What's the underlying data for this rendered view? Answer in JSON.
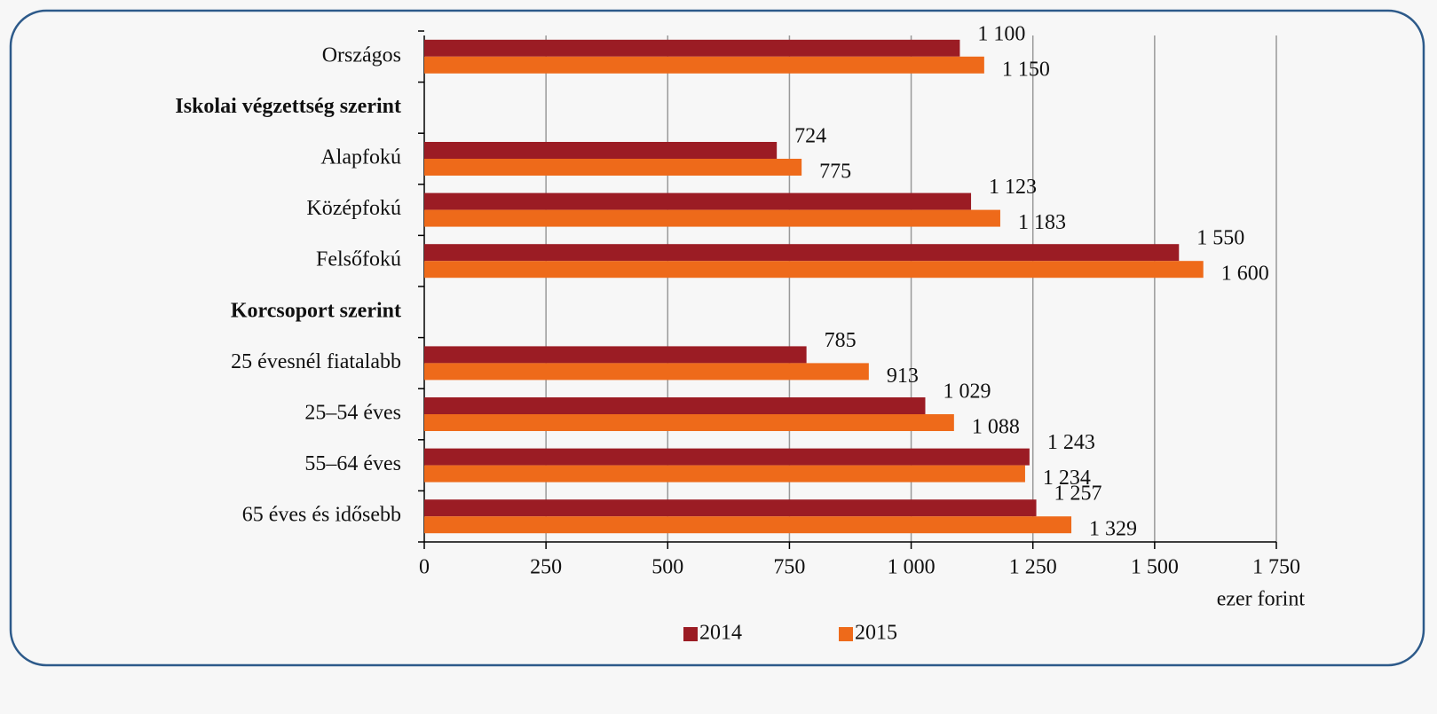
{
  "chart_data": {
    "type": "hbar",
    "categories": [
      "Országos",
      "Iskolai végzettség szerint",
      "Alapfokú",
      "Középfokú",
      "Felsőfokú",
      "Korcsoport szerint",
      "25 évesnél fiatalabb",
      "25–54 éves",
      "55–64 éves",
      "65 éves és idősebb"
    ],
    "series": [
      {
        "name": "2014",
        "color": "#9b1c24",
        "values": [
          1100,
          null,
          724,
          1123,
          1550,
          null,
          785,
          1029,
          1243,
          1257
        ],
        "value_labels": [
          "1 100",
          null,
          "724",
          "1 123",
          "1 550",
          null,
          "785",
          "1 029",
          "1 243",
          "1 257"
        ]
      },
      {
        "name": "2015",
        "color": "#ee6a1a",
        "values": [
          1150,
          null,
          775,
          1183,
          1600,
          null,
          913,
          1088,
          1234,
          1329
        ],
        "value_labels": [
          "1 150",
          null,
          "775",
          "1 183",
          "1 600",
          null,
          "913",
          "1 088",
          "1 234",
          "1 329"
        ]
      }
    ],
    "xlim": [
      0,
      1750
    ],
    "xticks": [
      0,
      250,
      500,
      750,
      {
        "value": 1000,
        "label": "1 000"
      },
      {
        "value": 1250,
        "label": "1 250"
      },
      {
        "value": 1500,
        "label": "1 500"
      },
      {
        "value": 1750,
        "label": "1 750"
      }
    ],
    "x_label": "ezer forint",
    "grid": true,
    "legend": "bottom"
  }
}
